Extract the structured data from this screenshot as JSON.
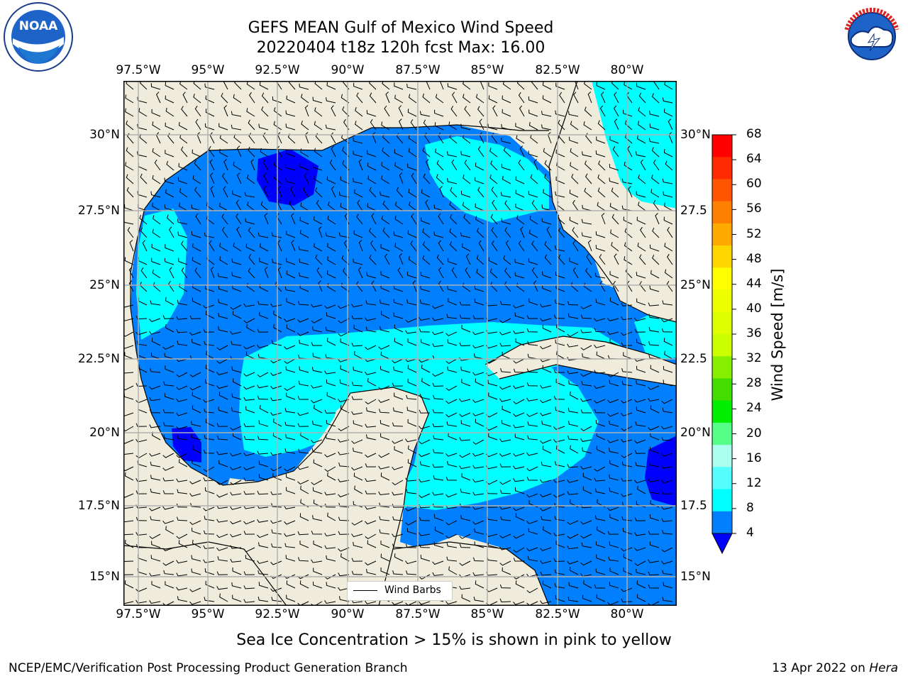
{
  "title": {
    "line1": "GEFS MEAN Gulf of Mexico Wind Speed",
    "line2": "20220404 t18z 120h fcst   Max: 16.00"
  },
  "logos": {
    "noaa_text": "NOAA",
    "noaa_ring": "NATIONAL OCEANIC AND ATMOSPHERIC ADMINISTRATION",
    "noaa_ring_bottom": "U.S. DEPARTMENT OF COMMERCE",
    "nws_ring": "NATIONAL WEATHER SERVICE"
  },
  "axes": {
    "lon_labels": [
      "97.5°W",
      "95°W",
      "92.5°W",
      "90°W",
      "87.5°W",
      "85°W",
      "82.5°W",
      "80°W"
    ],
    "lat_labels_left": [
      "30°N",
      "27.5°N",
      "25°N",
      "22.5°N",
      "20°N",
      "17.5°N",
      "15°N"
    ],
    "lat_labels_right": [
      "30°N",
      "27.5",
      "25°N",
      "22.5",
      "20°N",
      "17.5",
      "15°N"
    ]
  },
  "legend": {
    "label": "Wind Barbs"
  },
  "colorbar": {
    "label": "Wind Speed [m/s]",
    "ticks": [
      "68",
      "64",
      "60",
      "56",
      "52",
      "48",
      "44",
      "40",
      "36",
      "32",
      "28",
      "24",
      "20",
      "16",
      "12",
      "8",
      "4"
    ],
    "colors": [
      "#ff0000",
      "#ff2a00",
      "#ff5500",
      "#ff8000",
      "#ffaa00",
      "#ffd500",
      "#ffff00",
      "#eeff00",
      "#ddff00",
      "#ccff00",
      "#88ee00",
      "#44dd00",
      "#00ee00",
      "#55ff88",
      "#aaffee",
      "#55ffff",
      "#00ffff",
      "#0080ff"
    ],
    "extend_color": "#0000ff"
  },
  "map": {
    "land_color": "#efecdc",
    "shade_blue": "#0080ff",
    "shade_cyan": "#00ffff",
    "shade_dark": "#0000ff",
    "shade_light": "#55ffff",
    "grid_color": "#b0b0b0"
  },
  "note": "Sea Ice Concentration > 15% is shown in pink to yellow",
  "footer": {
    "left": "NCEP/EMC/Verification Post Processing Product Generation Branch",
    "date": "13 Apr 2022 on",
    "machine": "Hera"
  }
}
